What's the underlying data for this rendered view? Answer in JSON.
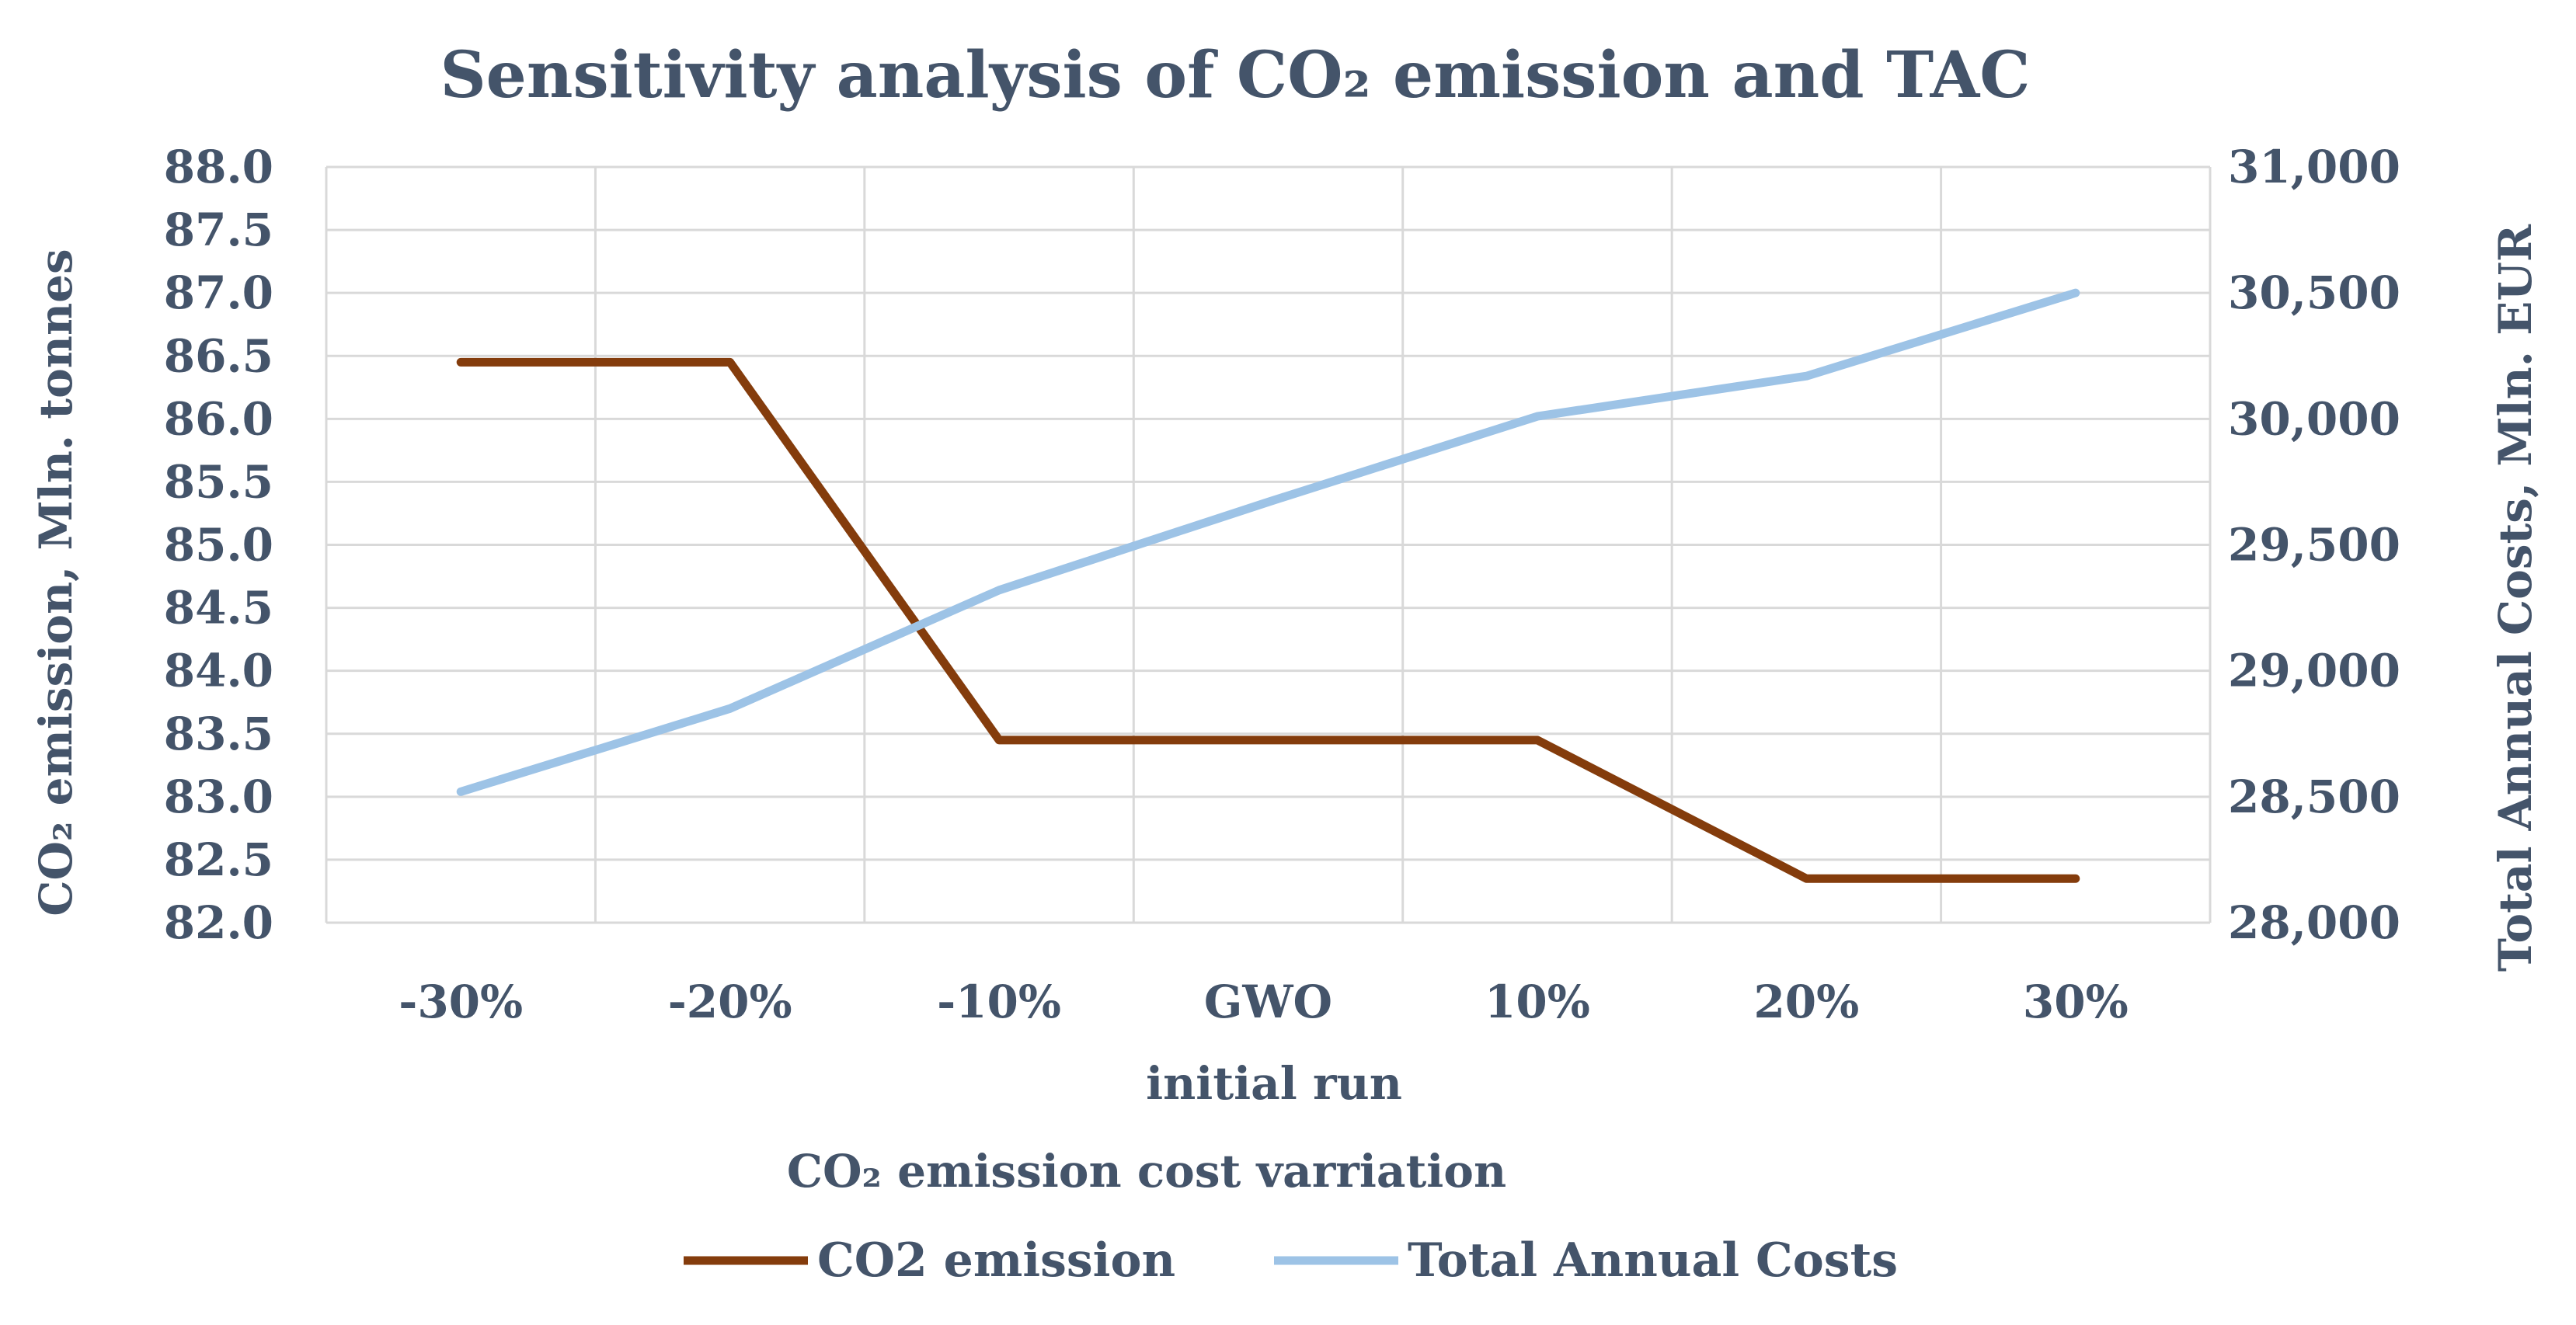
{
  "chart_data": {
    "type": "line",
    "title": "Sensitivity  analysis of CO₂ emission and TAC",
    "categories": [
      "-30%",
      "-20%",
      "-10%",
      "GWO",
      "10%",
      "20%",
      "30%"
    ],
    "category_sublabel": "initial run",
    "xlabel": "CO₂ emission cost varriation",
    "ylabel_left": "CO₂ emission, Mln. tonnes",
    "ylabel_right": "Total Annual Costs, Mln. EUR",
    "ylim_left": [
      82.0,
      88.0
    ],
    "ylim_right": [
      28000,
      31000
    ],
    "yticks_left": [
      "82.0",
      "82.5",
      "83.0",
      "83.5",
      "84.0",
      "84.5",
      "85.0",
      "85.5",
      "86.0",
      "86.5",
      "87.0",
      "87.5",
      "88.0"
    ],
    "yticks_right": [
      "28,000",
      "28,500",
      "29,000",
      "29,500",
      "30,000",
      "30,500",
      "31,000"
    ],
    "grid": true,
    "legend_position": "bottom",
    "series": [
      {
        "name": "CO2 emission",
        "axis": "left",
        "color": "#843c0c",
        "values": [
          86.45,
          86.45,
          83.45,
          83.45,
          83.45,
          82.35,
          82.35
        ]
      },
      {
        "name": "Total Annual Costs",
        "axis": "right",
        "color": "#9dc3e6",
        "values": [
          28520,
          28850,
          29320,
          29670,
          30010,
          30170,
          30500
        ]
      }
    ]
  }
}
